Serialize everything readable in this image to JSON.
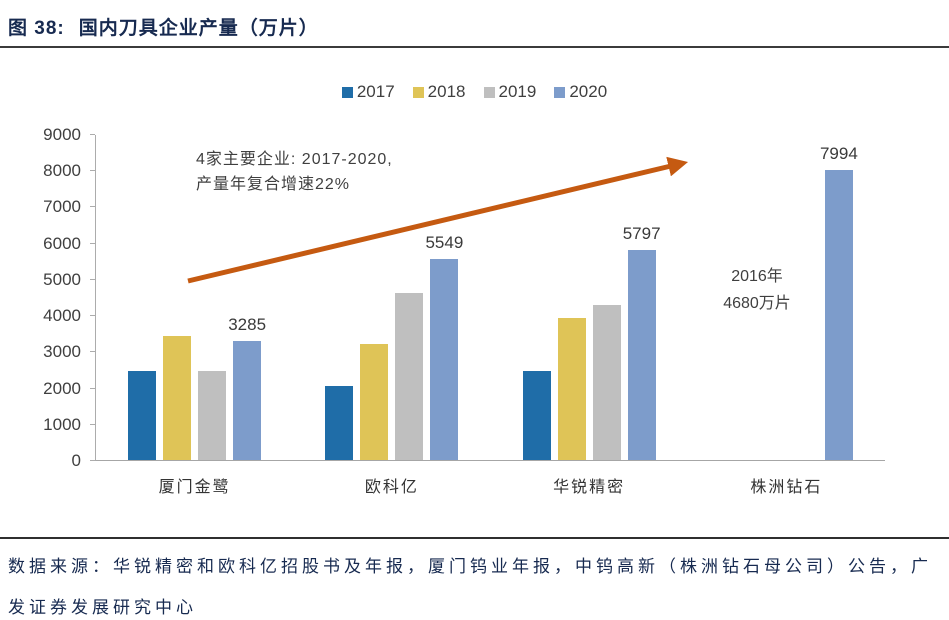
{
  "title": {
    "prefix": "图 38:",
    "text": "国内刀具企业产量（万片）"
  },
  "chart_data": {
    "type": "bar",
    "title": "国内刀具企业产量（万片）",
    "categories": [
      "厦门金鹭",
      "欧科亿",
      "华锐精密",
      "株洲钻石"
    ],
    "series": [
      {
        "name": "2017",
        "color": "#1F6DA8",
        "values": [
          2470,
          2040,
          2470,
          null
        ]
      },
      {
        "name": "2018",
        "color": "#DFC457",
        "values": [
          3420,
          3190,
          3930,
          null
        ]
      },
      {
        "name": "2019",
        "color": "#BFBFBF",
        "values": [
          2470,
          4600,
          4270,
          null
        ]
      },
      {
        "name": "2020",
        "color": "#7D9CCB",
        "values": [
          3285,
          5549,
          5797,
          7994
        ]
      }
    ],
    "data_labels": {
      "series": "2020",
      "values": [
        "3285",
        "5549",
        "5797",
        "7994"
      ]
    },
    "ylim": [
      0,
      9000
    ],
    "ytick_step": 1000,
    "grid": false,
    "legend_position": "top",
    "xlabel": "",
    "ylabel": ""
  },
  "annotations": {
    "cagr_line1": "4家主要企业: 2017-2020,",
    "cagr_line2": "产量年复合增速22%",
    "zhuzhou_line1": "2016年",
    "zhuzhou_line2": "4680万片"
  },
  "source": {
    "text": "数据来源：华锐精密和欧科亿招股书及年报，厦门钨业年报，中钨高新（株洲钻石母公司）公告，广发证券发展研究中心"
  },
  "colors": {
    "title_text": "#172A50",
    "axis_line": "#ACACAC",
    "tick_text": "#3F3F3F",
    "trend_arrow": "#C55A11",
    "rule": "#3B3B3B"
  }
}
